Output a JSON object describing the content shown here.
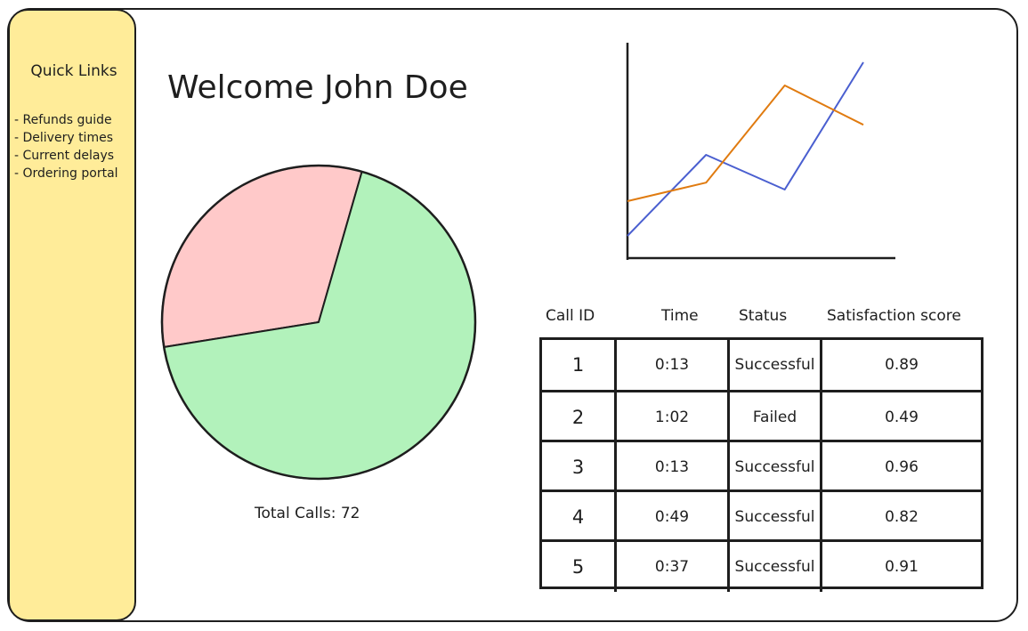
{
  "sidebar": {
    "title": "Quick Links",
    "links": [
      "- Refunds guide",
      "- Delivery times",
      "- Current delays",
      "- Ordering portal"
    ],
    "color": "#ffec99"
  },
  "welcome": "Welcome John Doe",
  "pie": {
    "slices": [
      {
        "fraction": 0.32,
        "color": "#ffc9c9"
      },
      {
        "fraction": 0.68,
        "color": "#b2f2bb"
      }
    ],
    "total_label": "Total Calls: 72"
  },
  "line_chart": {
    "type": "line",
    "series": [
      {
        "color": "#4a5fd0",
        "values": [
          1,
          4.5,
          3,
          8.5
        ]
      },
      {
        "color": "#e07b10",
        "values": [
          2.5,
          3.3,
          7.5,
          5.8
        ]
      }
    ]
  },
  "table": {
    "headers": [
      "Call ID",
      "Time",
      "Status",
      "Satisfaction score"
    ],
    "rows": [
      {
        "id": "1",
        "time": "0:13",
        "status": "Successful",
        "score": "0.89"
      },
      {
        "id": "2",
        "time": "1:02",
        "status": "Failed",
        "score": "0.49"
      },
      {
        "id": "3",
        "time": "0:13",
        "status": "Successful",
        "score": "0.96"
      },
      {
        "id": "4",
        "time": "0:49",
        "status": "Successful",
        "score": "0.82"
      },
      {
        "id": "5",
        "time": "0:37",
        "status": "Successful",
        "score": "0.91"
      }
    ]
  }
}
